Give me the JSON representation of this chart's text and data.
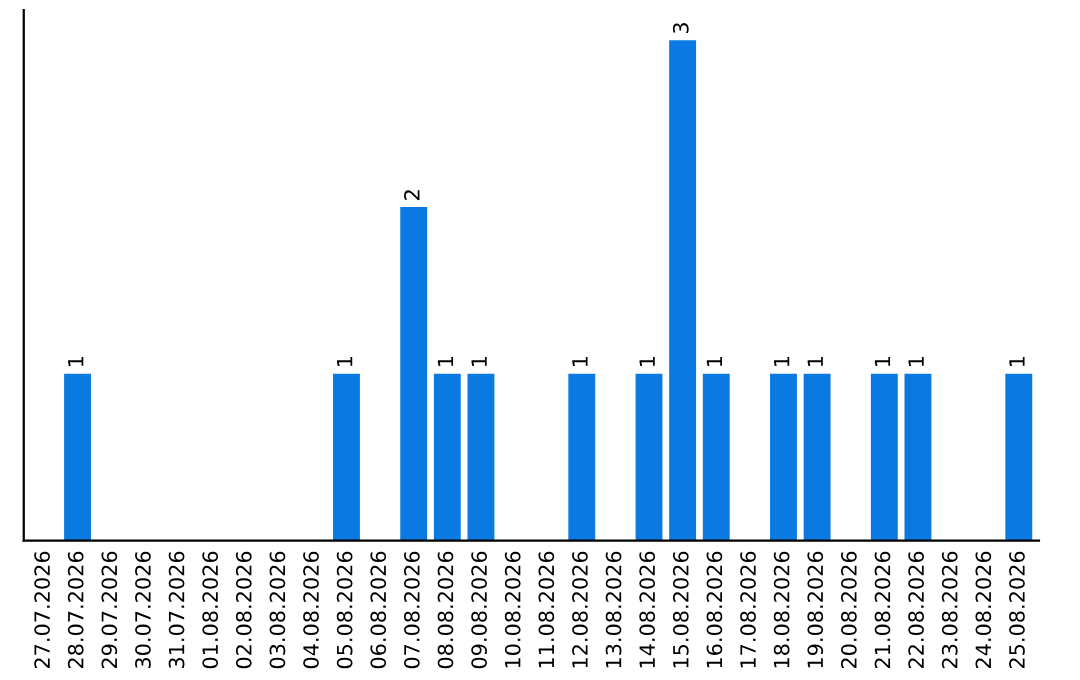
{
  "chart_data": {
    "type": "bar",
    "categories": [
      "27.07.2026",
      "28.07.2026",
      "29.07.2026",
      "30.07.2026",
      "31.07.2026",
      "01.08.2026",
      "02.08.2026",
      "03.08.2026",
      "04.08.2026",
      "05.08.2026",
      "06.08.2026",
      "07.08.2026",
      "08.08.2026",
      "09.08.2026",
      "10.08.2026",
      "11.08.2026",
      "12.08.2026",
      "13.08.2026",
      "14.08.2026",
      "15.08.2026",
      "16.08.2026",
      "17.08.2026",
      "18.08.2026",
      "19.08.2026",
      "20.08.2026",
      "21.08.2026",
      "22.08.2026",
      "23.08.2026",
      "24.08.2026",
      "25.08.2026"
    ],
    "values": [
      0,
      1,
      0,
      0,
      0,
      0,
      0,
      0,
      0,
      1,
      0,
      2,
      1,
      1,
      0,
      0,
      1,
      0,
      1,
      3,
      1,
      0,
      1,
      1,
      0,
      1,
      1,
      0,
      0,
      1
    ],
    "value_labels": [
      null,
      "1",
      null,
      null,
      null,
      null,
      null,
      null,
      null,
      "1",
      null,
      "2",
      "1",
      "1",
      null,
      null,
      "1",
      null,
      "1",
      "3",
      "1",
      null,
      "1",
      "1",
      null,
      "1",
      "1",
      null,
      null,
      "1"
    ],
    "color": "#0a7ae2",
    "tick_labels": "x",
    "grid": false,
    "legend": false
  }
}
